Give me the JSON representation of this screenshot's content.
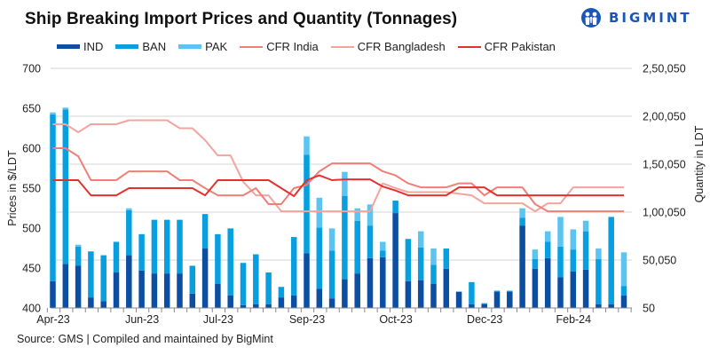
{
  "title": "Ship Breaking Import Prices and Quantity (Tonnages)",
  "logo": {
    "text": "BIGMINT",
    "icon": "bigmint-logo-icon",
    "color": "#1a56b8"
  },
  "source": "Source: GMS | Compiled and maintained by BigMint",
  "chart_data": {
    "type": "bar+line",
    "title": "Ship Breaking Import Prices and Quantity (Tonnages)",
    "xlabel": "",
    "ylabel_left": "Prices in $/LDT",
    "ylabel_right": "Quantity in LDT",
    "ylim_left": [
      400,
      700
    ],
    "ylim_right": [
      50,
      250050
    ],
    "yticks_left": [
      "400",
      "450",
      "500",
      "550",
      "600",
      "650",
      "700"
    ],
    "yticks_right": [
      "50",
      "50,050",
      "1,00,050",
      "1,50,050",
      "2,00,050",
      "2,50,050"
    ],
    "x_tick_labels": [
      {
        "label": "Apr-23",
        "index": 0
      },
      {
        "label": "Jun-23",
        "index": 7
      },
      {
        "label": "Jul-23",
        "index": 13
      },
      {
        "label": "Sep-23",
        "index": 20
      },
      {
        "label": "Oct-23",
        "index": 27
      },
      {
        "label": "Dec-23",
        "index": 34
      },
      {
        "label": "Feb-24",
        "index": 41
      }
    ],
    "num_periods": 46,
    "grid": true,
    "legend_position": "top",
    "bar_series": [
      {
        "name": "IND",
        "color": "#0b4ea2",
        "axis": "right",
        "values": [
          28000,
          46000,
          44000,
          11000,
          7000,
          37000,
          55000,
          39000,
          36000,
          36000,
          36000,
          15000,
          62000,
          25000,
          13000,
          3000,
          4000,
          4000,
          11000,
          13000,
          57000,
          20000,
          10000,
          30000,
          36000,
          52000,
          53000,
          99000,
          28000,
          29000,
          25000,
          41000,
          17000,
          4000,
          4000,
          17000,
          17000,
          86000,
          41000,
          52000,
          32000,
          38000,
          40000,
          4000,
          4000,
          13000
        ]
      },
      {
        "name": "BAN",
        "color": "#079fe0",
        "axis": "right",
        "values": [
          174000,
          161000,
          20000,
          48000,
          48000,
          32000,
          47000,
          38000,
          56000,
          56000,
          56000,
          29000,
          36000,
          52000,
          70000,
          44000,
          52000,
          33000,
          11000,
          61000,
          103000,
          64000,
          50000,
          87000,
          55000,
          34000,
          7000,
          13000,
          44000,
          34000,
          20000,
          21000,
          0,
          23000,
          1000,
          1000,
          1000,
          8000,
          10000,
          17000,
          32000,
          23000,
          40000,
          47000,
          91000,
          10000
        ]
      },
      {
        "name": "PAK",
        "color": "#5bc4f1",
        "axis": "right",
        "values": [
          2000,
          2000,
          2000,
          0,
          0,
          0,
          2000,
          0,
          0,
          0,
          0,
          0,
          0,
          0,
          0,
          0,
          0,
          0,
          0,
          0,
          19000,
          31000,
          23000,
          25000,
          13000,
          22000,
          9000,
          0,
          0,
          17000,
          17000,
          0,
          0,
          0,
          0,
          0,
          0,
          10000,
          10000,
          11000,
          31000,
          21000,
          11000,
          11000,
          0,
          35000
        ]
      }
    ],
    "line_series": [
      {
        "name": "CFR India",
        "color": "#f07f78",
        "axis": "left",
        "values": [
          600,
          600,
          590,
          560,
          560,
          560,
          571,
          571,
          571,
          571,
          560,
          560,
          550,
          541,
          541,
          541,
          550,
          530,
          530,
          550,
          554,
          571,
          581,
          581,
          581,
          581,
          571,
          566,
          556,
          551,
          551,
          551,
          556,
          556,
          541,
          551,
          551,
          551,
          530,
          521,
          521,
          521,
          521,
          521,
          521,
          521
        ]
      },
      {
        "name": "CFR Bangladesh",
        "color": "#f4a49e",
        "axis": "left",
        "values": [
          630,
          630,
          620,
          630,
          630,
          630,
          635,
          635,
          635,
          635,
          625,
          625,
          610,
          591,
          591,
          558,
          541,
          541,
          521,
          521,
          521,
          521,
          521,
          521,
          521,
          521,
          556,
          550,
          545,
          545,
          545,
          545,
          543,
          541,
          531,
          531,
          531,
          531,
          521,
          531,
          531,
          551,
          551,
          551,
          551,
          551
        ]
      },
      {
        "name": "CFR Pakistan",
        "color": "#e3322d",
        "axis": "left",
        "values": [
          560,
          560,
          560,
          541,
          541,
          541,
          550,
          550,
          550,
          550,
          550,
          550,
          541,
          560,
          560,
          560,
          560,
          560,
          550,
          540,
          560,
          566,
          560,
          561,
          561,
          561,
          552,
          547,
          541,
          541,
          541,
          541,
          551,
          551,
          551,
          541,
          541,
          541,
          541,
          541,
          541,
          541,
          541,
          541,
          541,
          541
        ]
      }
    ]
  }
}
